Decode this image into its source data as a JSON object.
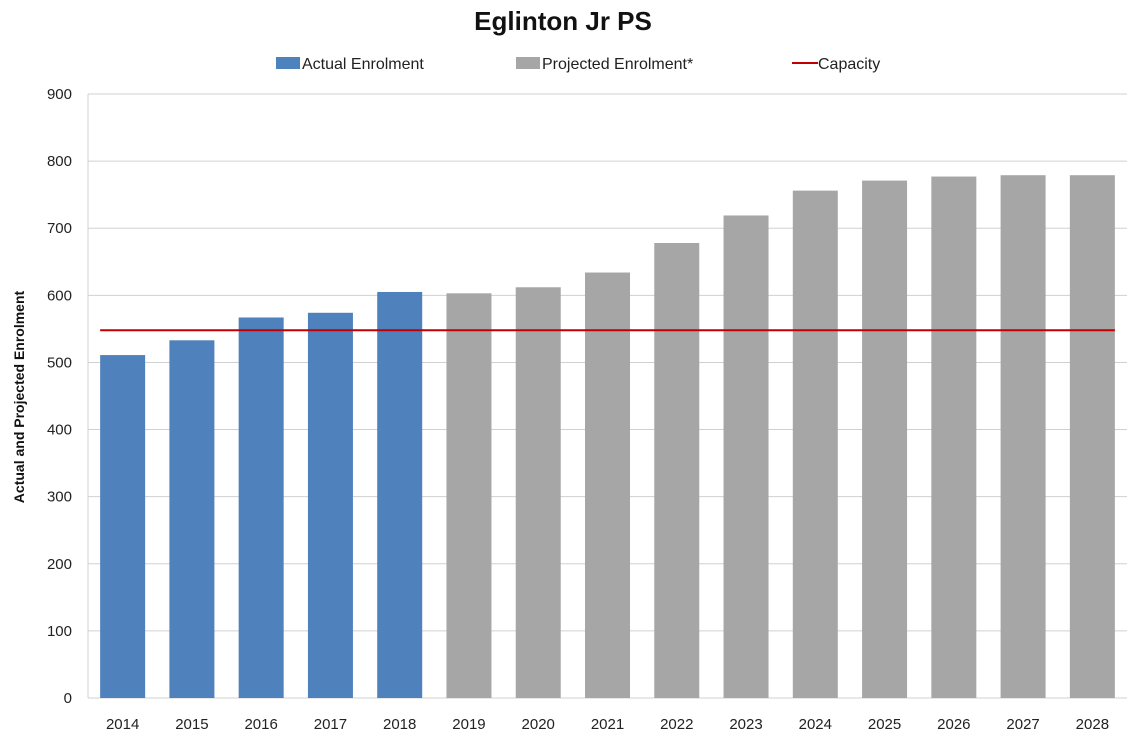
{
  "chart_data": {
    "type": "bar",
    "title": "Eglinton Jr PS",
    "xlabel": "",
    "ylabel": "Actual and Projected Enrolment",
    "ylim": [
      0,
      900
    ],
    "yticks": [
      0,
      100,
      200,
      300,
      400,
      500,
      600,
      700,
      800,
      900
    ],
    "grid": true,
    "legend_position": "top",
    "categories": [
      "2014",
      "2015",
      "2016",
      "2017",
      "2018",
      "2019",
      "2020",
      "2021",
      "2022",
      "2023",
      "2024",
      "2025",
      "2026",
      "2027",
      "2028"
    ],
    "series": [
      {
        "name": "Actual Enrolment",
        "type": "bar",
        "color": "#4F81BD",
        "values": [
          511,
          533,
          567,
          574,
          605,
          null,
          null,
          null,
          null,
          null,
          null,
          null,
          null,
          null,
          null
        ]
      },
      {
        "name": "Projected Enrolment*",
        "type": "bar",
        "color": "#A6A6A6",
        "values": [
          null,
          null,
          null,
          null,
          null,
          603,
          612,
          634,
          678,
          719,
          756,
          771,
          777,
          779,
          779
        ]
      },
      {
        "name": "Capacity",
        "type": "line",
        "color": "#C00000",
        "values": [
          548,
          548,
          548,
          548,
          548,
          548,
          548,
          548,
          548,
          548,
          548,
          548,
          548,
          548,
          548
        ]
      }
    ]
  }
}
